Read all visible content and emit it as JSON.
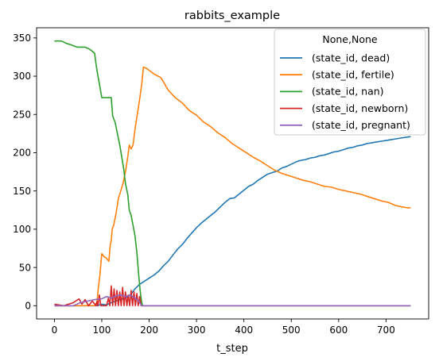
{
  "chart_data": {
    "type": "line",
    "title": "rabbits_example",
    "xlabel": "t_step",
    "ylabel": "",
    "xlim": [
      -37.6,
      790
    ],
    "ylim": [
      -17.3,
      363.3
    ],
    "xticks": [
      0,
      100,
      200,
      300,
      400,
      500,
      600,
      700
    ],
    "yticks": [
      0,
      50,
      100,
      150,
      200,
      250,
      300,
      350
    ],
    "grid": false,
    "legend": {
      "title": "None,None",
      "placement": "top-right"
    },
    "series": [
      {
        "name": "(state_id, dead)",
        "color": "#1f77b4",
        "points": [
          [
            0,
            0
          ],
          [
            90,
            0
          ],
          [
            100,
            2
          ],
          [
            110,
            1
          ],
          [
            120,
            4
          ],
          [
            130,
            6
          ],
          [
            140,
            8
          ],
          [
            150,
            10
          ],
          [
            160,
            14
          ],
          [
            170,
            22
          ],
          [
            180,
            28
          ],
          [
            190,
            32
          ],
          [
            200,
            36
          ],
          [
            210,
            40
          ],
          [
            220,
            45
          ],
          [
            230,
            52
          ],
          [
            240,
            58
          ],
          [
            250,
            66
          ],
          [
            260,
            74
          ],
          [
            270,
            80
          ],
          [
            280,
            88
          ],
          [
            290,
            95
          ],
          [
            300,
            102
          ],
          [
            310,
            108
          ],
          [
            320,
            113
          ],
          [
            330,
            118
          ],
          [
            340,
            123
          ],
          [
            350,
            129
          ],
          [
            360,
            135
          ],
          [
            370,
            140
          ],
          [
            380,
            141
          ],
          [
            390,
            146
          ],
          [
            400,
            151
          ],
          [
            410,
            156
          ],
          [
            420,
            159
          ],
          [
            430,
            164
          ],
          [
            440,
            168
          ],
          [
            450,
            172
          ],
          [
            460,
            174
          ],
          [
            470,
            176
          ],
          [
            480,
            180
          ],
          [
            490,
            182
          ],
          [
            500,
            185
          ],
          [
            510,
            188
          ],
          [
            520,
            190
          ],
          [
            530,
            191
          ],
          [
            540,
            193
          ],
          [
            550,
            194
          ],
          [
            560,
            196
          ],
          [
            570,
            197
          ],
          [
            580,
            199
          ],
          [
            590,
            201
          ],
          [
            600,
            202
          ],
          [
            610,
            204
          ],
          [
            620,
            206
          ],
          [
            630,
            207
          ],
          [
            640,
            209
          ],
          [
            650,
            210
          ],
          [
            660,
            212
          ],
          [
            670,
            213
          ],
          [
            680,
            214
          ],
          [
            690,
            215
          ],
          [
            700,
            216
          ],
          [
            710,
            217
          ],
          [
            720,
            218
          ],
          [
            730,
            219
          ],
          [
            740,
            220
          ],
          [
            752,
            221
          ]
        ]
      },
      {
        "name": "(state_id, fertile)",
        "color": "#ff7f0e",
        "points": [
          [
            0,
            0
          ],
          [
            85,
            0
          ],
          [
            90,
            5
          ],
          [
            93,
            25
          ],
          [
            96,
            40
          ],
          [
            100,
            68
          ],
          [
            105,
            64
          ],
          [
            110,
            62
          ],
          [
            115,
            58
          ],
          [
            118,
            80
          ],
          [
            120,
            85
          ],
          [
            122,
            100
          ],
          [
            125,
            105
          ],
          [
            130,
            120
          ],
          [
            135,
            140
          ],
          [
            140,
            150
          ],
          [
            145,
            160
          ],
          [
            150,
            175
          ],
          [
            155,
            195
          ],
          [
            158,
            210
          ],
          [
            162,
            205
          ],
          [
            166,
            210
          ],
          [
            170,
            230
          ],
          [
            175,
            250
          ],
          [
            180,
            270
          ],
          [
            184,
            288
          ],
          [
            188,
            312
          ],
          [
            195,
            310
          ],
          [
            210,
            303
          ],
          [
            225,
            298
          ],
          [
            240,
            282
          ],
          [
            255,
            272
          ],
          [
            270,
            265
          ],
          [
            285,
            255
          ],
          [
            300,
            249
          ],
          [
            315,
            240
          ],
          [
            330,
            234
          ],
          [
            345,
            226
          ],
          [
            360,
            220
          ],
          [
            375,
            212
          ],
          [
            390,
            206
          ],
          [
            405,
            200
          ],
          [
            420,
            194
          ],
          [
            435,
            189
          ],
          [
            450,
            183
          ],
          [
            465,
            177
          ],
          [
            480,
            173
          ],
          [
            495,
            170
          ],
          [
            510,
            167
          ],
          [
            525,
            164
          ],
          [
            540,
            162
          ],
          [
            555,
            159
          ],
          [
            570,
            156
          ],
          [
            585,
            155
          ],
          [
            600,
            152
          ],
          [
            615,
            150
          ],
          [
            630,
            148
          ],
          [
            645,
            146
          ],
          [
            660,
            143
          ],
          [
            675,
            140
          ],
          [
            690,
            137
          ],
          [
            705,
            135
          ],
          [
            720,
            131
          ],
          [
            735,
            129
          ],
          [
            745,
            128
          ],
          [
            752,
            128
          ]
        ]
      },
      {
        "name": "(state_id, nan)",
        "color": "#2ca02c",
        "points": [
          [
            0,
            346
          ],
          [
            15,
            346
          ],
          [
            25,
            343
          ],
          [
            35,
            341
          ],
          [
            48,
            338
          ],
          [
            65,
            338
          ],
          [
            75,
            335
          ],
          [
            85,
            330
          ],
          [
            88,
            315
          ],
          [
            92,
            300
          ],
          [
            95,
            290
          ],
          [
            100,
            272
          ],
          [
            110,
            272
          ],
          [
            120,
            272
          ],
          [
            123,
            248
          ],
          [
            128,
            240
          ],
          [
            133,
            225
          ],
          [
            138,
            210
          ],
          [
            142,
            195
          ],
          [
            146,
            180
          ],
          [
            150,
            160
          ],
          [
            155,
            145
          ],
          [
            158,
            125
          ],
          [
            162,
            118
          ],
          [
            166,
            105
          ],
          [
            170,
            92
          ],
          [
            174,
            70
          ],
          [
            178,
            40
          ],
          [
            181,
            20
          ],
          [
            184,
            5
          ],
          [
            186,
            0
          ],
          [
            752,
            0
          ]
        ]
      },
      {
        "name": "(state_id, newborn)",
        "color": "#d62728",
        "points": [
          [
            0,
            2
          ],
          [
            20,
            0
          ],
          [
            40,
            4
          ],
          [
            52,
            9
          ],
          [
            58,
            2
          ],
          [
            65,
            8
          ],
          [
            72,
            0
          ],
          [
            80,
            6
          ],
          [
            88,
            0
          ],
          [
            90,
            6
          ],
          [
            92,
            0
          ],
          [
            95,
            14
          ],
          [
            98,
            0
          ],
          [
            105,
            0
          ],
          [
            110,
            0
          ],
          [
            114,
            10
          ],
          [
            117,
            0
          ],
          [
            120,
            26
          ],
          [
            123,
            0
          ],
          [
            126,
            22
          ],
          [
            129,
            0
          ],
          [
            132,
            20
          ],
          [
            135,
            0
          ],
          [
            138,
            18
          ],
          [
            141,
            0
          ],
          [
            144,
            24
          ],
          [
            147,
            0
          ],
          [
            150,
            18
          ],
          [
            153,
            0
          ],
          [
            156,
            14
          ],
          [
            159,
            0
          ],
          [
            162,
            20
          ],
          [
            165,
            0
          ],
          [
            168,
            18
          ],
          [
            171,
            0
          ],
          [
            174,
            16
          ],
          [
            177,
            0
          ],
          [
            180,
            12
          ],
          [
            183,
            0
          ],
          [
            752,
            0
          ]
        ]
      },
      {
        "name": "(state_id, pregnant)",
        "color": "#9467bd",
        "points": [
          [
            0,
            0
          ],
          [
            40,
            0
          ],
          [
            55,
            4
          ],
          [
            70,
            6
          ],
          [
            85,
            8
          ],
          [
            100,
            9
          ],
          [
            110,
            12
          ],
          [
            120,
            10
          ],
          [
            130,
            13
          ],
          [
            140,
            14
          ],
          [
            150,
            12
          ],
          [
            160,
            14
          ],
          [
            170,
            10
          ],
          [
            178,
            6
          ],
          [
            184,
            0
          ],
          [
            752,
            0
          ]
        ]
      }
    ]
  }
}
